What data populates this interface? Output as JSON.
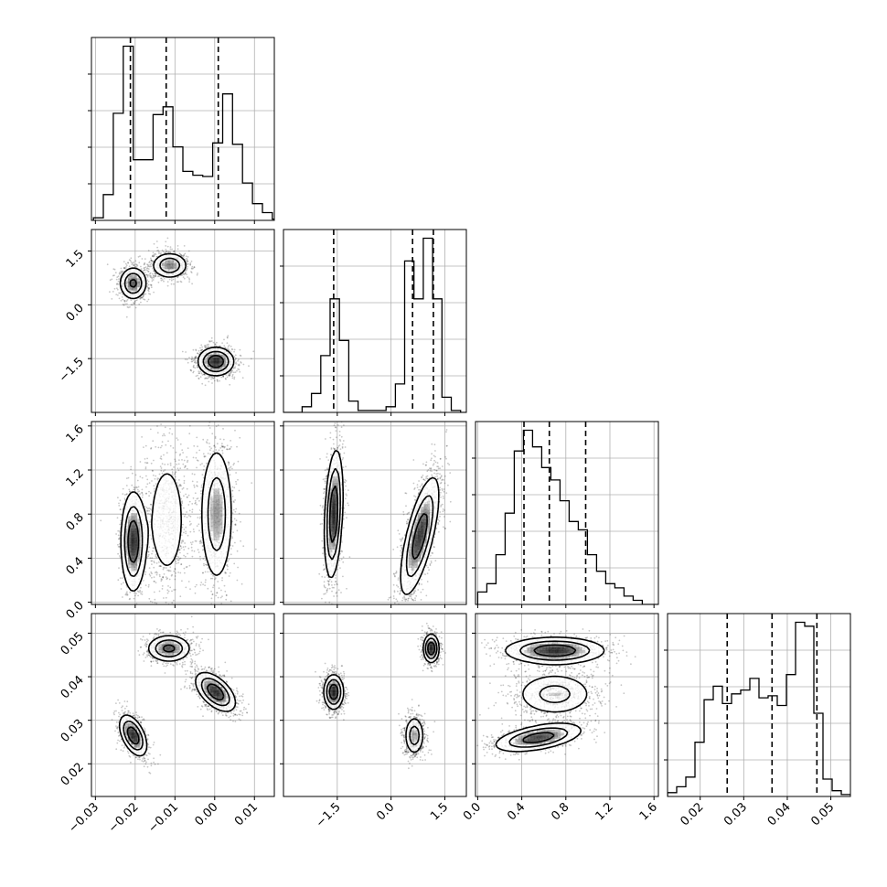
{
  "chart_data": {
    "type": "corner",
    "parameters": [
      {
        "id": "p0",
        "range": [
          -0.031,
          0.015
        ],
        "ticks": [
          -0.03,
          -0.02,
          -0.01,
          0.0,
          0.01
        ],
        "tick_labels": [
          "−0.03",
          "−0.02",
          "−0.01",
          "0.00",
          "0.01"
        ],
        "quantiles": [
          -0.0212,
          -0.0122,
          0.0009
        ],
        "histogram": {
          "bin_start": -0.0305,
          "bin_width": 0.0025,
          "counts": [
            2,
            20,
            83,
            135,
            47,
            47,
            82,
            88,
            57,
            38,
            35,
            34,
            60,
            98,
            59,
            29,
            13,
            6,
            1,
            0
          ]
        }
      },
      {
        "id": "p1",
        "range": [
          -3.0,
          2.1
        ],
        "ticks": [
          -1.5,
          0.0,
          1.5
        ],
        "tick_labels": [
          "−1.5",
          "0.0",
          "1.5"
        ],
        "quantiles": [
          -1.6,
          0.6,
          1.18
        ],
        "histogram": {
          "bin_start": -3.0,
          "bin_width": 0.26,
          "counts": [
            0,
            0,
            3,
            10,
            30,
            60,
            38,
            6,
            1,
            1,
            1,
            3,
            15,
            80,
            60,
            92,
            60,
            8,
            1,
            0
          ]
        }
      },
      {
        "id": "p2",
        "range": [
          -0.02,
          1.64
        ],
        "ticks": [
          0.0,
          0.4,
          0.8,
          1.2,
          1.6
        ],
        "tick_labels": [
          "0.0",
          "0.4",
          "0.8",
          "1.2",
          "1.6"
        ],
        "quantiles": [
          0.42,
          0.65,
          0.98
        ],
        "histogram": {
          "bin_start": 0.0,
          "bin_width": 0.083,
          "counts": [
            3,
            5,
            12,
            22,
            37,
            42,
            38,
            33,
            30,
            25,
            20,
            18,
            12,
            8,
            5,
            4,
            2,
            1,
            0,
            0
          ]
        }
      },
      {
        "id": "p3",
        "range": [
          0.0125,
          0.0545
        ],
        "ticks": [
          0.02,
          0.03,
          0.04,
          0.05
        ],
        "tick_labels": [
          "0.02",
          "0.03",
          "0.04",
          "0.05"
        ],
        "quantiles": [
          0.0262,
          0.0365,
          0.0468
        ],
        "histogram": {
          "bin_start": 0.0125,
          "bin_width": 0.0021,
          "counts": [
            2,
            5,
            10,
            28,
            50,
            57,
            48,
            53,
            55,
            61,
            51,
            52,
            47,
            63,
            90,
            88,
            43,
            9,
            3,
            1
          ]
        }
      }
    ],
    "joint_modes": {
      "p1_vs_p0": [
        {
          "x": -0.0205,
          "y": 0.6,
          "sx": 0.0019,
          "sy": 0.25,
          "rho": 0.0,
          "w": 0.3
        },
        {
          "x": -0.0113,
          "y": 1.1,
          "sx": 0.0025,
          "sy": 0.2,
          "rho": 0.0,
          "w": 0.28
        },
        {
          "x": 0.0003,
          "y": -1.58,
          "sx": 0.0025,
          "sy": 0.22,
          "rho": 0.0,
          "w": 0.42
        }
      ],
      "p2_vs_p0": [
        {
          "x": -0.0205,
          "y": 0.55,
          "sx": 0.0017,
          "sy": 0.25,
          "rho": 0.0,
          "w": 0.3
        },
        {
          "x": -0.012,
          "y": 0.75,
          "sx": 0.003,
          "sy": 0.35,
          "rho": 0.0,
          "w": 0.3
        },
        {
          "x": 0.0005,
          "y": 0.8,
          "sx": 0.0023,
          "sy": 0.35,
          "rho": 0.0,
          "w": 0.4
        }
      ],
      "p3_vs_p0": [
        {
          "x": -0.0205,
          "y": 0.0265,
          "sx": 0.0019,
          "sy": 0.0026,
          "rho": -0.5,
          "w": 0.3
        },
        {
          "x": -0.0115,
          "y": 0.0465,
          "sx": 0.003,
          "sy": 0.0017,
          "rho": 0.0,
          "w": 0.3
        },
        {
          "x": 0.0002,
          "y": 0.0365,
          "sx": 0.0028,
          "sy": 0.0025,
          "rho": -0.55,
          "w": 0.4
        }
      ],
      "p2_vs_p1": [
        {
          "x": -1.6,
          "y": 0.8,
          "sx": 0.14,
          "sy": 0.32,
          "rho": 0.3,
          "w": 0.42
        },
        {
          "x": 0.8,
          "y": 0.6,
          "sx": 0.3,
          "sy": 0.3,
          "rho": 0.7,
          "w": 0.58
        }
      ],
      "p3_vs_p1": [
        {
          "x": -1.6,
          "y": 0.0365,
          "sx": 0.15,
          "sy": 0.0022,
          "rho": 0.0,
          "w": 0.42
        },
        {
          "x": 0.65,
          "y": 0.0265,
          "sx": 0.15,
          "sy": 0.0025,
          "rho": 0.0,
          "w": 0.3
        },
        {
          "x": 1.12,
          "y": 0.0465,
          "sx": 0.12,
          "sy": 0.0018,
          "rho": 0.0,
          "w": 0.28
        }
      ],
      "p3_vs_p2": [
        {
          "x": 0.55,
          "y": 0.026,
          "sx": 0.22,
          "sy": 0.0018,
          "rho": 0.5,
          "w": 0.3
        },
        {
          "x": 0.7,
          "y": 0.036,
          "sx": 0.2,
          "sy": 0.0028,
          "rho": 0.0,
          "w": 0.3
        },
        {
          "x": 0.7,
          "y": 0.046,
          "sx": 0.25,
          "sy": 0.0017,
          "rho": 0.0,
          "w": 0.4
        }
      ]
    },
    "contour_levels": [
      0.2,
      0.45,
      0.75
    ],
    "grid": true,
    "colors": {
      "line": "#000000",
      "grid": "#b0b0b0",
      "density": "#000000"
    }
  }
}
